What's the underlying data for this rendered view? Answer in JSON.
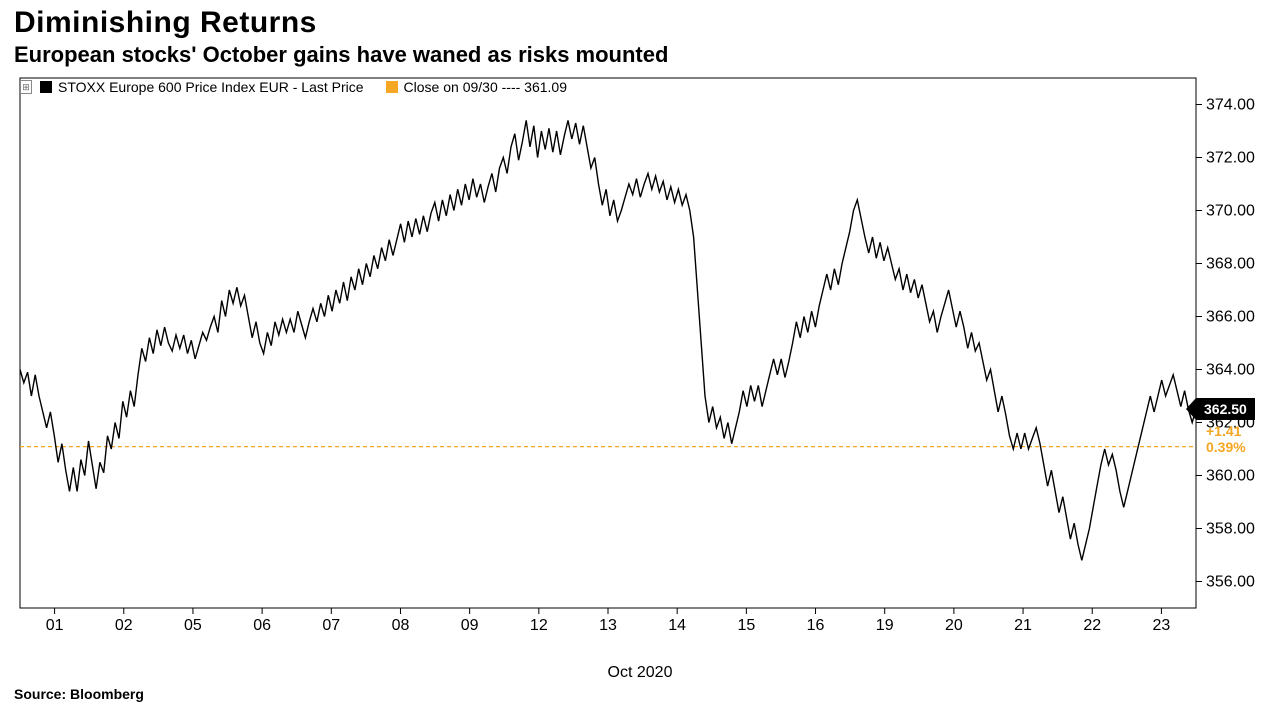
{
  "title": "Diminishing Returns",
  "subtitle": "European stocks' October gains have waned as risks mounted",
  "source": "Source: Bloomberg",
  "chart": {
    "type": "line",
    "background_color": "#ffffff",
    "axis_color": "#000000",
    "line_color": "#000000",
    "line_width": 1.4,
    "ref_line_color": "#f5a623",
    "ref_line_dash": "4,3",
    "ref_value": 361.09,
    "last_value": 362.5,
    "last_marker_bg": "#000000",
    "last_marker_fg": "#ffffff",
    "change_abs": "+1.41",
    "change_pct": "0.39%",
    "change_color": "#f5a623",
    "ylim": [
      355,
      375
    ],
    "yticks": [
      356,
      358,
      360,
      362,
      364,
      366,
      368,
      370,
      372,
      374
    ],
    "tick_fontsize": 16,
    "x_label": "Oct 2020",
    "x_ticks": [
      "01",
      "02",
      "05",
      "06",
      "07",
      "08",
      "09",
      "12",
      "13",
      "14",
      "15",
      "16",
      "19",
      "20",
      "21",
      "22",
      "23"
    ],
    "legend": {
      "series_swatch": "#000000",
      "series_label": "STOXX Europe 600 Price Index EUR - Last Price",
      "ref_swatch": "#f5a623",
      "ref_label": "Close on 09/30 ---- 361.09"
    },
    "series": [
      364.0,
      363.5,
      363.9,
      363.0,
      363.8,
      363.0,
      362.4,
      361.8,
      362.4,
      361.5,
      360.5,
      361.2,
      360.2,
      359.4,
      360.3,
      359.4,
      360.6,
      360.0,
      361.3,
      360.4,
      359.5,
      360.5,
      360.1,
      361.5,
      361.0,
      362.0,
      361.4,
      362.8,
      362.2,
      363.2,
      362.6,
      363.8,
      364.8,
      364.3,
      365.2,
      364.6,
      365.5,
      364.9,
      365.6,
      365.0,
      364.7,
      365.3,
      364.8,
      365.3,
      364.6,
      365.1,
      364.4,
      364.9,
      365.4,
      365.1,
      365.6,
      366.0,
      365.4,
      366.6,
      366.0,
      367.0,
      366.5,
      367.1,
      366.4,
      366.8,
      366.0,
      365.2,
      365.8,
      365.0,
      364.6,
      365.4,
      364.9,
      365.8,
      365.3,
      365.9,
      365.4,
      365.9,
      365.4,
      366.2,
      365.7,
      365.2,
      365.8,
      366.3,
      365.8,
      366.5,
      366.0,
      366.8,
      366.2,
      367.0,
      366.5,
      367.3,
      366.6,
      367.5,
      367.0,
      367.8,
      367.2,
      368.0,
      367.5,
      368.3,
      367.8,
      368.6,
      368.1,
      368.9,
      368.3,
      368.9,
      369.5,
      368.8,
      369.6,
      369.0,
      369.7,
      369.1,
      369.8,
      369.2,
      369.9,
      370.3,
      369.6,
      370.4,
      369.8,
      370.6,
      370.0,
      370.8,
      370.2,
      371.0,
      370.4,
      371.2,
      370.5,
      371.0,
      370.3,
      370.9,
      371.4,
      370.7,
      371.6,
      372.0,
      371.4,
      372.4,
      372.9,
      371.9,
      372.6,
      373.4,
      372.4,
      373.2,
      372.0,
      373.0,
      372.3,
      373.1,
      372.2,
      373.0,
      372.1,
      372.8,
      373.4,
      372.7,
      373.3,
      372.5,
      373.2,
      372.4,
      371.6,
      372.0,
      371.0,
      370.2,
      370.8,
      369.8,
      370.4,
      369.6,
      370.0,
      370.5,
      371.0,
      370.6,
      371.2,
      370.5,
      371.0,
      371.4,
      370.8,
      371.3,
      370.7,
      371.1,
      370.4,
      370.9,
      370.3,
      370.8,
      370.2,
      370.6,
      370.0,
      369.0,
      367.0,
      365.0,
      363.0,
      362.0,
      362.6,
      361.8,
      362.2,
      361.4,
      362.0,
      361.2,
      361.8,
      362.4,
      363.2,
      362.6,
      363.4,
      362.8,
      363.4,
      362.6,
      363.2,
      363.8,
      364.4,
      363.8,
      364.4,
      363.7,
      364.3,
      365.0,
      365.8,
      365.2,
      366.0,
      365.4,
      366.2,
      365.6,
      366.4,
      367.0,
      367.6,
      367.0,
      367.8,
      367.2,
      368.0,
      368.6,
      369.2,
      370.0,
      370.4,
      369.7,
      369.0,
      368.4,
      369.0,
      368.2,
      368.8,
      368.1,
      368.6,
      368.0,
      367.4,
      367.8,
      367.0,
      367.6,
      366.9,
      367.4,
      366.7,
      367.2,
      366.5,
      365.8,
      366.2,
      365.4,
      366.0,
      366.5,
      367.0,
      366.3,
      365.6,
      366.2,
      365.6,
      364.8,
      365.4,
      364.7,
      365.0,
      364.3,
      363.6,
      364.0,
      363.2,
      362.4,
      363.0,
      362.3,
      361.5,
      361.0,
      361.6,
      361.0,
      361.6,
      361.0,
      361.4,
      361.8,
      361.2,
      360.4,
      359.6,
      360.2,
      359.4,
      358.6,
      359.2,
      358.4,
      357.6,
      358.2,
      357.4,
      356.8,
      357.4,
      358.0,
      358.8,
      359.6,
      360.4,
      361.0,
      360.4,
      360.8,
      360.2,
      359.4,
      358.8,
      359.4,
      360.0,
      360.6,
      361.2,
      361.8,
      362.4,
      363.0,
      362.4,
      363.0,
      363.6,
      363.0,
      363.4,
      363.8,
      363.2,
      362.6,
      363.2,
      362.5,
      362.0,
      362.5
    ]
  }
}
